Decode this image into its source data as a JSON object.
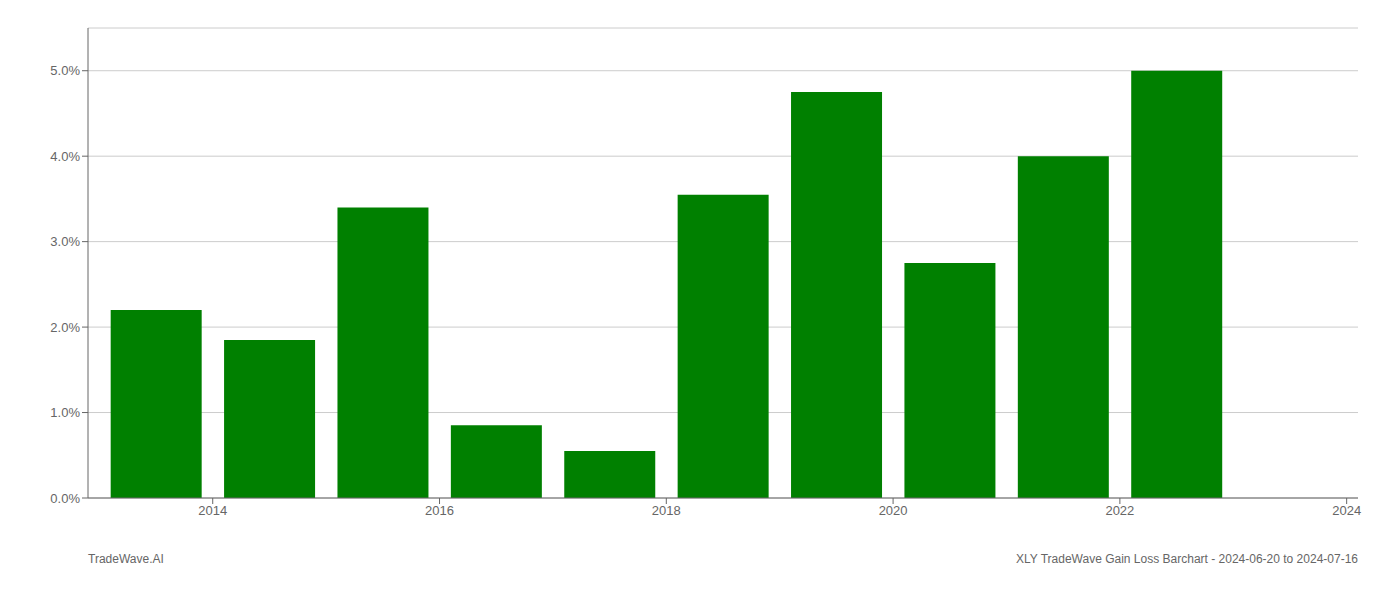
{
  "chart_data": {
    "type": "bar",
    "x": [
      2014,
      2015,
      2016,
      2017,
      2018,
      2019,
      2020,
      2021,
      2022,
      2023
    ],
    "values": [
      0.022,
      0.0185,
      0.034,
      0.0085,
      0.0055,
      0.0355,
      0.0475,
      0.0275,
      0.04,
      0.05
    ],
    "color": "#008000",
    "xlim": [
      2013.4,
      2024.6
    ],
    "xticks": [
      {
        "value": 2014.5,
        "label": "2014"
      },
      {
        "value": 2016.5,
        "label": "2016"
      },
      {
        "value": 2018.5,
        "label": "2018"
      },
      {
        "value": 2020.5,
        "label": "2020"
      },
      {
        "value": 2022.5,
        "label": "2022"
      },
      {
        "value": 2024.5,
        "label": "2024"
      }
    ],
    "ylim": [
      0,
      0.055
    ],
    "yticks": [
      {
        "value": 0.0,
        "label": "0.0%"
      },
      {
        "value": 0.01,
        "label": "1.0%"
      },
      {
        "value": 0.02,
        "label": "2.0%"
      },
      {
        "value": 0.03,
        "label": "3.0%"
      },
      {
        "value": 0.04,
        "label": "4.0%"
      },
      {
        "value": 0.05,
        "label": "5.0%"
      }
    ],
    "grid": true,
    "annotations": [
      "TradeWave.AI",
      "XLY TradeWave Gain Loss Barchart - 2024-06-20 to 2024-07-16"
    ]
  }
}
